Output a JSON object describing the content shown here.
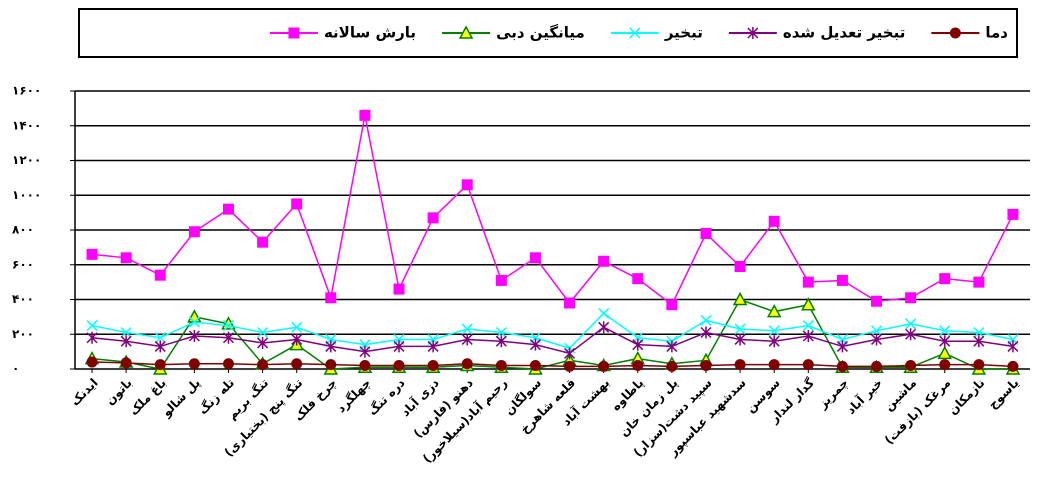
{
  "chart_data": {
    "type": "line",
    "categories": [
      "ایدنک",
      "باتون",
      "باغ ملک",
      "پل شالو",
      "تله زنگ",
      "تنگ بریم",
      "تنگ پنج (بختیاری)",
      "چرخ فلک",
      "چهلگرد",
      "دره تنگ",
      "دزی آباد",
      "دهنو (فارس)",
      "رحیم آباد(سیلاخور)",
      "سولگان",
      "قلعه شاهرخ",
      "بهشت آباد",
      "پاطاوه",
      "پل زمان خان",
      "سپید دشت(سزار)",
      "سدشهید عباسپور",
      "سوسن",
      "گدار لندار",
      "چمریز",
      "خیر آباد",
      "ماشین",
      "مرغک (بازفت)",
      "نازمکان",
      "یاسوج"
    ],
    "series": [
      {
        "name": "دما",
        "color": "#800000",
        "marker": "circle",
        "values": [
          40,
          35,
          25,
          30,
          30,
          25,
          30,
          25,
          20,
          20,
          20,
          30,
          20,
          20,
          15,
          15,
          20,
          15,
          20,
          25,
          25,
          25,
          15,
          15,
          20,
          25,
          25,
          15
        ]
      },
      {
        "name": "تبخیر تعدیل شده",
        "color": "#800080",
        "marker": "star",
        "values": [
          180,
          160,
          130,
          190,
          180,
          150,
          170,
          130,
          100,
          130,
          130,
          170,
          160,
          140,
          90,
          240,
          140,
          130,
          210,
          170,
          160,
          190,
          130,
          170,
          200,
          160,
          160,
          130
        ]
      },
      {
        "name": "تبخیر",
        "color": "#00ffff",
        "marker": "x",
        "values": [
          250,
          210,
          180,
          270,
          250,
          210,
          240,
          170,
          140,
          170,
          170,
          230,
          210,
          180,
          120,
          320,
          180,
          160,
          280,
          230,
          220,
          250,
          170,
          220,
          260,
          220,
          210,
          170
        ]
      },
      {
        "name": "میانگین دبی",
        "color": "#008000",
        "marker": "triangle",
        "values": [
          60,
          40,
          0,
          300,
          260,
          30,
          140,
          0,
          10,
          10,
          10,
          20,
          10,
          0,
          50,
          20,
          60,
          30,
          50,
          400,
          330,
          370,
          10,
          10,
          10,
          90,
          0,
          0
        ]
      },
      {
        "name": "بارش سالانه",
        "color": "#ff00ff",
        "marker": "square",
        "values": [
          660,
          640,
          540,
          790,
          920,
          730,
          950,
          410,
          1460,
          460,
          870,
          1060,
          510,
          640,
          380,
          620,
          520,
          370,
          780,
          590,
          850,
          500,
          510,
          390,
          410,
          520,
          500,
          890
        ]
      }
    ],
    "ylim": [
      0,
      1600
    ],
    "yticks": [
      {
        "value": 0,
        "label": "۰"
      },
      {
        "value": 200,
        "label": "۲۰۰"
      },
      {
        "value": 400,
        "label": "۴۰۰"
      },
      {
        "value": 600,
        "label": "۶۰۰"
      },
      {
        "value": 800,
        "label": "۸۰۰"
      },
      {
        "value": 1000,
        "label": "۱۰۰۰"
      },
      {
        "value": 1200,
        "label": "۱۲۰۰"
      },
      {
        "value": 1400,
        "label": "۱۴۰۰"
      },
      {
        "value": 1600,
        "label": "۱۶۰۰"
      }
    ],
    "grid": true
  }
}
